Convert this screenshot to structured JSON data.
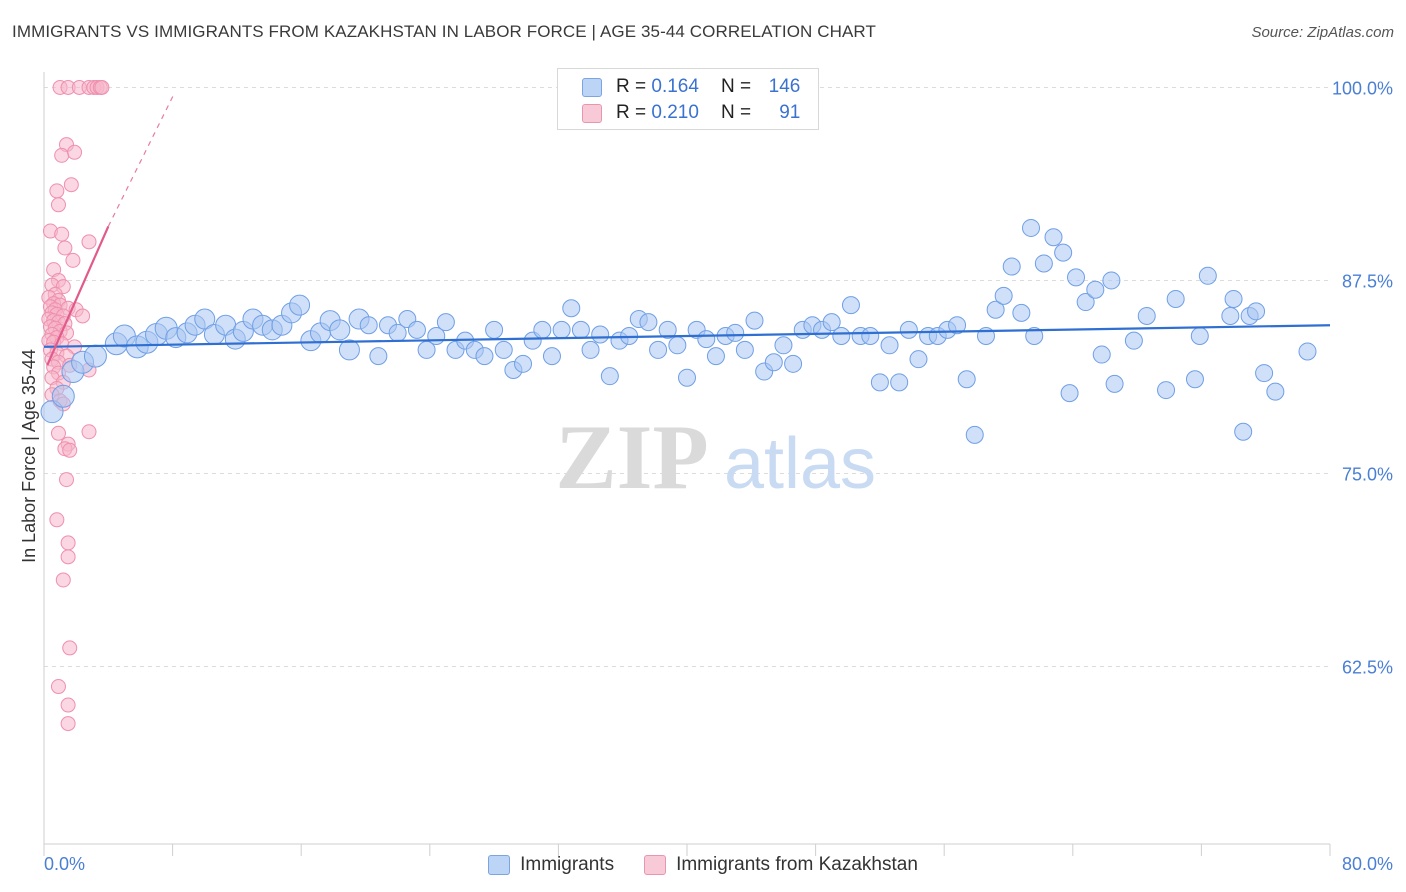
{
  "title": "IMMIGRANTS VS IMMIGRANTS FROM KAZAKHSTAN IN LABOR FORCE | AGE 35-44 CORRELATION CHART",
  "source": "Source: ZipAtlas.com",
  "watermark": {
    "zip": "ZIP",
    "atlas": "atlas"
  },
  "stats": {
    "rows": [
      {
        "r_label": "R =",
        "r_value": "0.164",
        "n_label": "N =",
        "n_value": "146",
        "color": "#6f9fe6"
      },
      {
        "r_label": "R =",
        "r_value": "0.210",
        "n_label": "N =",
        "n_value": "91",
        "color": "#ef8fae"
      }
    ]
  },
  "legend": {
    "immigrants": "Immigrants",
    "kazakhstan": "Immigrants from Kazakhstan"
  },
  "colors": {
    "blue_fill": "#a9c6f2",
    "blue_stroke": "#6f9fe6",
    "blue_line": "#2f6fd2",
    "pink_fill": "#f6b7ca",
    "pink_stroke": "#ef8fae",
    "pink_line": "#e25a8a",
    "tick_label": "#4a7fd4",
    "grid": "#dcdcdc"
  },
  "chart_data": {
    "type": "scatter",
    "title": "IMMIGRANTS VS IMMIGRANTS FROM KAZAKHSTAN IN LABOR FORCE | AGE 35-44 CORRELATION CHART",
    "xlabel": "",
    "ylabel": "In Labor Force | Age 35-44",
    "xlim": [
      0,
      80
    ],
    "ylim": [
      51,
      101
    ],
    "x_tick_labels": [
      "0.0%",
      "80.0%"
    ],
    "y_ticks": [
      62.5,
      75.0,
      87.5,
      100.0
    ],
    "y_tick_labels": [
      "62.5%",
      "75.0%",
      "87.5%",
      "100.0%"
    ],
    "grid": "horizontal dashed",
    "legend_position": "bottom",
    "series": [
      {
        "name": "Immigrants",
        "trend": {
          "x": [
            0,
            80
          ],
          "y": [
            83.2,
            84.6
          ]
        },
        "points": [
          [
            0.5,
            79.0
          ],
          [
            1.2,
            80.0
          ],
          [
            1.8,
            81.6
          ],
          [
            2.4,
            82.2
          ],
          [
            3.2,
            82.6
          ],
          [
            4.5,
            83.4
          ],
          [
            5.0,
            83.9
          ],
          [
            5.8,
            83.2
          ],
          [
            6.4,
            83.5
          ],
          [
            7.0,
            84.0
          ],
          [
            7.6,
            84.4
          ],
          [
            8.2,
            83.8
          ],
          [
            8.9,
            84.1
          ],
          [
            9.4,
            84.6
          ],
          [
            10.0,
            85.0
          ],
          [
            10.6,
            84.0
          ],
          [
            11.3,
            84.6
          ],
          [
            11.9,
            83.7
          ],
          [
            12.4,
            84.2
          ],
          [
            13.0,
            85.0
          ],
          [
            13.6,
            84.6
          ],
          [
            14.2,
            84.3
          ],
          [
            14.8,
            84.6
          ],
          [
            15.4,
            85.4
          ],
          [
            15.9,
            85.9
          ],
          [
            16.6,
            83.6
          ],
          [
            17.2,
            84.1
          ],
          [
            17.8,
            84.9
          ],
          [
            18.4,
            84.3
          ],
          [
            19.0,
            83.0
          ],
          [
            19.6,
            85.0
          ],
          [
            20.2,
            84.6
          ],
          [
            20.8,
            82.6
          ],
          [
            21.4,
            84.6
          ],
          [
            22.0,
            84.1
          ],
          [
            22.6,
            85.0
          ],
          [
            23.2,
            84.3
          ],
          [
            23.8,
            83.0
          ],
          [
            24.4,
            83.9
          ],
          [
            25.0,
            84.8
          ],
          [
            25.6,
            83.0
          ],
          [
            26.2,
            83.6
          ],
          [
            26.8,
            83.0
          ],
          [
            27.4,
            82.6
          ],
          [
            28.0,
            84.3
          ],
          [
            28.6,
            83.0
          ],
          [
            29.2,
            81.7
          ],
          [
            29.8,
            82.1
          ],
          [
            30.4,
            83.6
          ],
          [
            31.0,
            84.3
          ],
          [
            31.6,
            82.6
          ],
          [
            32.2,
            84.3
          ],
          [
            32.8,
            85.7
          ],
          [
            33.4,
            84.3
          ],
          [
            34.0,
            83.0
          ],
          [
            34.6,
            84.0
          ],
          [
            35.2,
            81.3
          ],
          [
            35.8,
            83.6
          ],
          [
            36.4,
            83.9
          ],
          [
            37.0,
            85.0
          ],
          [
            37.6,
            84.8
          ],
          [
            38.2,
            83.0
          ],
          [
            38.8,
            84.3
          ],
          [
            39.4,
            83.3
          ],
          [
            40.0,
            81.2
          ],
          [
            40.6,
            84.3
          ],
          [
            41.2,
            83.7
          ],
          [
            41.8,
            82.6
          ],
          [
            42.4,
            83.9
          ],
          [
            43.0,
            84.1
          ],
          [
            43.6,
            83.0
          ],
          [
            44.2,
            84.9
          ],
          [
            44.8,
            81.6
          ],
          [
            45.4,
            82.2
          ],
          [
            46.0,
            83.3
          ],
          [
            46.6,
            82.1
          ],
          [
            47.2,
            84.3
          ],
          [
            47.8,
            84.6
          ],
          [
            48.4,
            84.3
          ],
          [
            49.0,
            84.8
          ],
          [
            49.6,
            83.9
          ],
          [
            50.2,
            85.9
          ],
          [
            50.8,
            83.9
          ],
          [
            51.4,
            83.9
          ],
          [
            52.0,
            80.9
          ],
          [
            52.6,
            83.3
          ],
          [
            53.2,
            80.9
          ],
          [
            53.8,
            84.3
          ],
          [
            54.4,
            82.4
          ],
          [
            55.0,
            83.9
          ],
          [
            55.6,
            83.9
          ],
          [
            56.2,
            84.3
          ],
          [
            56.8,
            84.6
          ],
          [
            57.4,
            81.1
          ],
          [
            57.9,
            77.5
          ],
          [
            58.6,
            83.9
          ],
          [
            59.2,
            85.6
          ],
          [
            59.7,
            86.5
          ],
          [
            60.2,
            88.4
          ],
          [
            60.8,
            85.4
          ],
          [
            61.4,
            90.9
          ],
          [
            61.6,
            83.9
          ],
          [
            62.2,
            88.6
          ],
          [
            62.8,
            90.3
          ],
          [
            63.4,
            89.3
          ],
          [
            63.8,
            80.2
          ],
          [
            64.2,
            87.7
          ],
          [
            64.8,
            86.1
          ],
          [
            65.4,
            86.9
          ],
          [
            65.8,
            82.7
          ],
          [
            66.4,
            87.5
          ],
          [
            66.6,
            80.8
          ],
          [
            67.8,
            83.6
          ],
          [
            68.6,
            85.2
          ],
          [
            69.8,
            80.4
          ],
          [
            70.4,
            86.3
          ],
          [
            71.6,
            81.1
          ],
          [
            71.9,
            83.9
          ],
          [
            72.4,
            87.8
          ],
          [
            73.8,
            85.2
          ],
          [
            74.0,
            86.3
          ],
          [
            74.6,
            77.7
          ],
          [
            75.0,
            85.2
          ],
          [
            75.4,
            85.5
          ],
          [
            75.9,
            81.5
          ],
          [
            76.6,
            80.3
          ],
          [
            78.6,
            82.9
          ]
        ]
      },
      {
        "name": "Immigrants from Kazakhstan",
        "trend": {
          "x": [
            0.2,
            4.0
          ],
          "y": [
            82.0,
            91.0
          ],
          "dash_to": {
            "x": 8.1,
            "y": 99.6
          }
        },
        "points": [
          [
            1.0,
            100.0
          ],
          [
            1.5,
            100.0
          ],
          [
            2.2,
            100.0
          ],
          [
            2.8,
            100.0
          ],
          [
            3.1,
            100.0
          ],
          [
            3.3,
            100.0
          ],
          [
            3.5,
            100.0
          ],
          [
            3.6,
            100.0
          ],
          [
            1.4,
            96.3
          ],
          [
            1.1,
            95.6
          ],
          [
            1.9,
            95.8
          ],
          [
            0.8,
            93.3
          ],
          [
            1.7,
            93.7
          ],
          [
            0.9,
            92.4
          ],
          [
            0.4,
            90.7
          ],
          [
            1.1,
            90.5
          ],
          [
            2.8,
            90.0
          ],
          [
            1.3,
            89.6
          ],
          [
            1.8,
            88.8
          ],
          [
            0.6,
            88.2
          ],
          [
            0.9,
            87.5
          ],
          [
            0.5,
            87.2
          ],
          [
            1.2,
            87.1
          ],
          [
            0.7,
            86.6
          ],
          [
            0.3,
            86.4
          ],
          [
            0.9,
            86.2
          ],
          [
            0.6,
            86.0
          ],
          [
            1.0,
            85.9
          ],
          [
            0.4,
            85.8
          ],
          [
            0.7,
            85.6
          ],
          [
            1.5,
            85.7
          ],
          [
            2.0,
            85.6
          ],
          [
            0.5,
            85.4
          ],
          [
            0.8,
            85.3
          ],
          [
            1.2,
            85.2
          ],
          [
            2.4,
            85.2
          ],
          [
            0.3,
            85.0
          ],
          [
            0.6,
            84.9
          ],
          [
            0.9,
            84.8
          ],
          [
            1.3,
            84.7
          ],
          [
            0.4,
            84.5
          ],
          [
            0.7,
            84.4
          ],
          [
            1.0,
            84.2
          ],
          [
            1.4,
            84.1
          ],
          [
            0.5,
            84.0
          ],
          [
            0.8,
            83.8
          ],
          [
            0.3,
            83.6
          ],
          [
            0.6,
            83.5
          ],
          [
            1.1,
            83.4
          ],
          [
            1.9,
            83.2
          ],
          [
            0.4,
            83.0
          ],
          [
            0.8,
            82.8
          ],
          [
            1.4,
            82.6
          ],
          [
            0.5,
            82.4
          ],
          [
            0.9,
            82.2
          ],
          [
            1.6,
            82.0
          ],
          [
            0.6,
            81.9
          ],
          [
            2.8,
            81.7
          ],
          [
            0.9,
            81.5
          ],
          [
            0.5,
            81.2
          ],
          [
            1.2,
            80.9
          ],
          [
            0.8,
            80.5
          ],
          [
            0.5,
            80.1
          ],
          [
            1.0,
            79.7
          ],
          [
            1.2,
            79.5
          ],
          [
            2.8,
            77.7
          ],
          [
            0.9,
            77.6
          ],
          [
            1.5,
            76.9
          ],
          [
            1.3,
            76.6
          ],
          [
            1.6,
            76.5
          ],
          [
            1.4,
            74.6
          ],
          [
            0.8,
            72.0
          ],
          [
            1.5,
            70.5
          ],
          [
            1.5,
            69.6
          ],
          [
            1.2,
            68.1
          ],
          [
            1.6,
            63.7
          ],
          [
            0.9,
            61.2
          ],
          [
            1.5,
            60.0
          ],
          [
            1.5,
            58.8
          ]
        ]
      }
    ]
  }
}
